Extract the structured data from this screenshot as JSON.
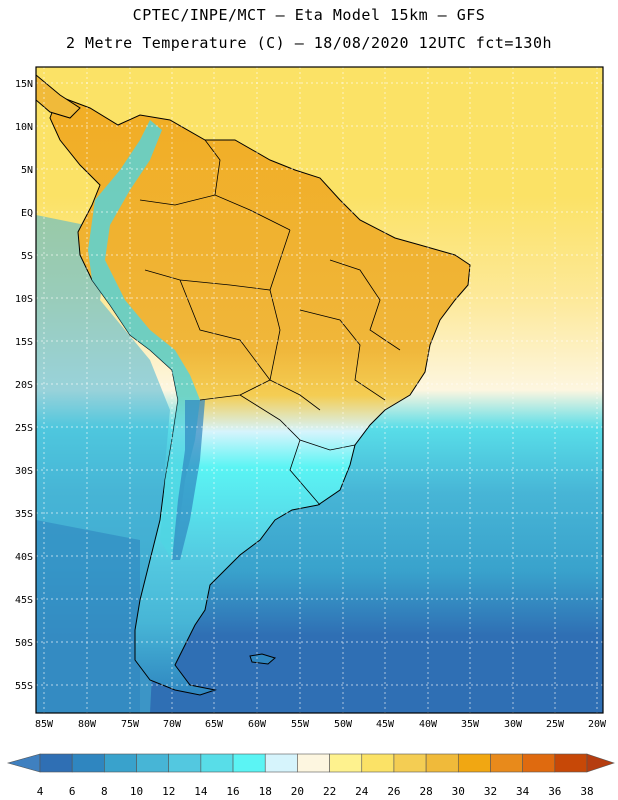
{
  "header": {
    "title_line1": "CPTEC/INPE/MCT –  Eta Model 15km – GFS",
    "title_line2": "2 Metre Temperature (C) – 18/08/2020 12UTC fct=130h"
  },
  "map": {
    "lat_labels": [
      "15N",
      "10N",
      "5N",
      "EQ",
      "5S",
      "10S",
      "15S",
      "20S",
      "25S",
      "30S",
      "35S",
      "40S",
      "45S",
      "50S",
      "55S"
    ],
    "lon_labels": [
      "85W",
      "80W",
      "75W",
      "70W",
      "65W",
      "60W",
      "55W",
      "50W",
      "45W",
      "40W",
      "35W",
      "30W",
      "25W",
      "20W"
    ],
    "background_ocean_color": "#3a9fc6",
    "tropical_land_color": "#f1ad24",
    "andes_color": "#4fd5e2"
  },
  "colorbar": {
    "labels": [
      "4",
      "6",
      "8",
      "10",
      "12",
      "14",
      "16",
      "18",
      "20",
      "22",
      "24",
      "26",
      "28",
      "30",
      "32",
      "34",
      "36",
      "38"
    ],
    "colors": [
      "#3f80c0",
      "#2f6fb4",
      "#2f86c0",
      "#39a2cc",
      "#47b5d6",
      "#53c8e0",
      "#58dde8",
      "#5bf4f4",
      "#d6f4fc",
      "#fdf6e0",
      "#fef28e",
      "#fbe266",
      "#f4cd53",
      "#f0ba3a",
      "#f1a712",
      "#e88a1b",
      "#df6a0f",
      "#c74807",
      "#b53d10"
    ]
  }
}
